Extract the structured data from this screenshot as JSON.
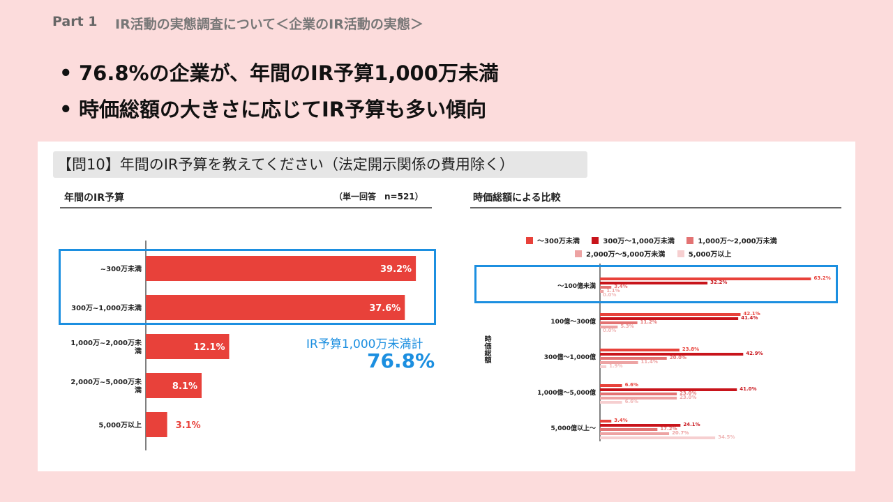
{
  "header": {
    "part": "Part 1",
    "title": "IR活動の実態調査について＜企業のIR活動の実態＞"
  },
  "bullets": [
    "76.8%の企業が、年間のIR予算1,000万未満",
    "時価総額の大きさに応じてIR予算も多い傾向"
  ],
  "question": "【問10】年間のIR予算を教えてください（法定開示関係の費用除く）",
  "left_panel": {
    "title": "年間のIR予算",
    "n_note": "（単一回答　n=521）",
    "total_label": "IR予算1,000万未満計",
    "total_value": "76.8%"
  },
  "right_panel": {
    "title": "時価総額による比較",
    "y_axis_label": "時価総額"
  },
  "colors": {
    "bar_main": "#e8413a",
    "highlight": "#1c8fe0",
    "series": [
      "#e8413a",
      "#c8141b",
      "#e37373",
      "#eda3a3",
      "#f6cfd0"
    ]
  },
  "chart_data": [
    {
      "type": "bar",
      "orientation": "horizontal",
      "title": "年間のIR予算",
      "categories": [
        "~300万未満",
        "300万~1,000万未満",
        "1,000万~2,000万未満",
        "2,000万~5,000万未満",
        "5,000万以上"
      ],
      "category_lines": [
        [
          "~300万未満"
        ],
        [
          "300万~1,000万未満"
        ],
        [
          "1,000万~2,000万未",
          "満"
        ],
        [
          "2,000万~5,000万未",
          "満"
        ],
        [
          "5,000万以上"
        ]
      ],
      "values": [
        39.2,
        37.6,
        12.1,
        8.1,
        3.1
      ],
      "value_labels": [
        "39.2%",
        "37.6%",
        "12.1%",
        "8.1%",
        "3.1%"
      ],
      "xlim": [
        0,
        40
      ]
    },
    {
      "type": "bar",
      "orientation": "horizontal",
      "title": "時価総額による比較",
      "ylabel": "時価総額",
      "categories": [
        "～100億未満",
        "100億～300億",
        "300億～1,000億",
        "1,000億～5,000億",
        "5,000億以上～"
      ],
      "series": [
        {
          "name": "～300万未満",
          "values": [
            63.2,
            42.1,
            23.8,
            6.6,
            3.4
          ]
        },
        {
          "name": "300万～1,000万未満",
          "values": [
            32.2,
            41.4,
            42.9,
            41.0,
            24.1
          ]
        },
        {
          "name": "1,000万～2,000万未満",
          "values": [
            3.4,
            11.2,
            20.0,
            23.0,
            17.2
          ]
        },
        {
          "name": "2,000万～5,000万未満",
          "values": [
            1.1,
            5.3,
            11.4,
            23.0,
            20.7
          ]
        },
        {
          "name": "5,000万以上",
          "values": [
            0.0,
            0.0,
            1.9,
            6.6,
            34.5
          ]
        }
      ],
      "xlim": [
        0,
        70
      ],
      "legend_position": "top"
    }
  ]
}
